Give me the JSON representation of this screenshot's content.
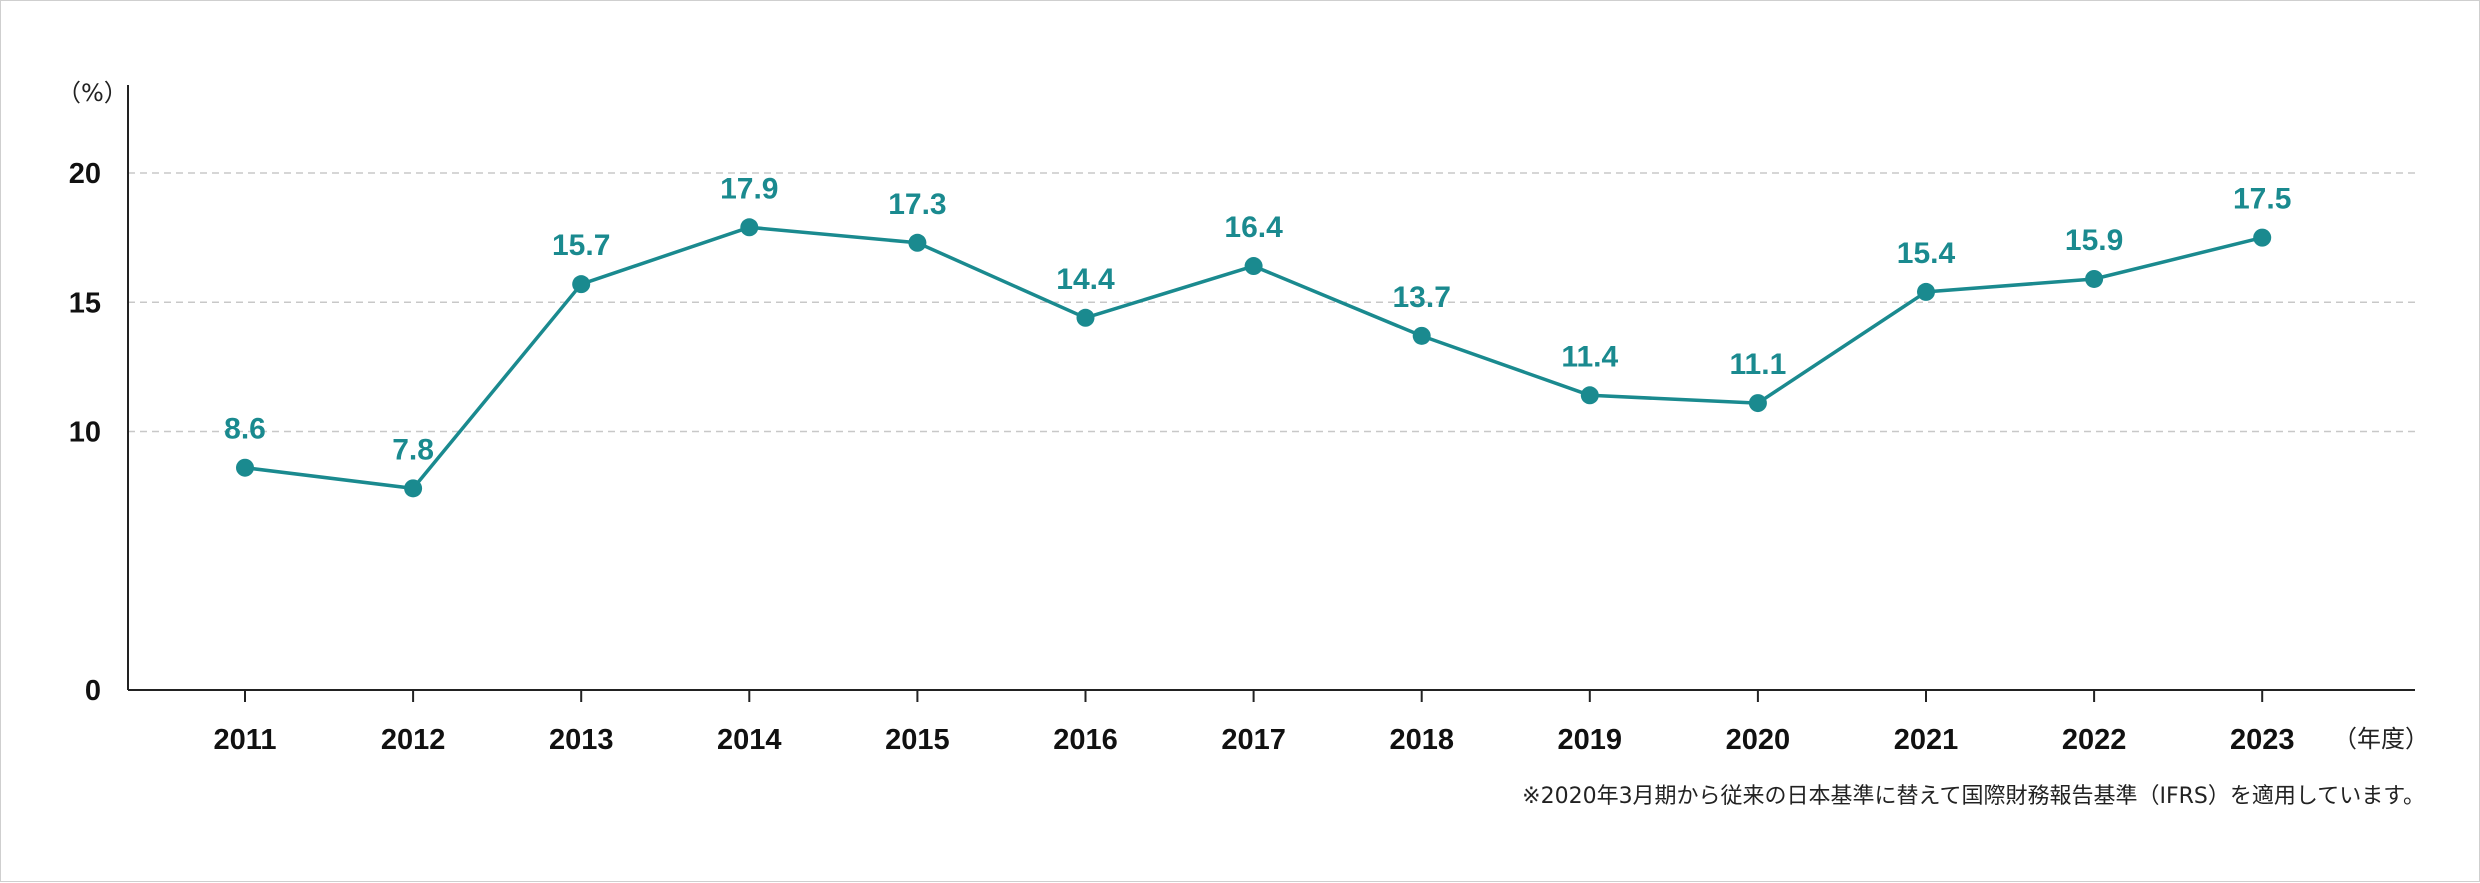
{
  "chart_data": {
    "type": "line",
    "y_unit_label": "（%）",
    "x_unit_label": "（年度）",
    "note": "※2020年3月期から従来の日本基準に替えて国際財務報告基準（IFRS）を適用しています。",
    "ylim": [
      0,
      20
    ],
    "y_ticks": [
      0,
      10,
      15,
      20
    ],
    "grid": true,
    "categories": [
      "2011",
      "2012",
      "2013",
      "2014",
      "2015",
      "2016",
      "2017",
      "2018",
      "2019",
      "2020",
      "2021",
      "2022",
      "2023"
    ],
    "series": [
      {
        "values": [
          8.6,
          7.8,
          15.7,
          17.9,
          17.3,
          14.4,
          16.4,
          13.7,
          11.4,
          11.1,
          15.4,
          15.9,
          17.5
        ],
        "labels": [
          "8.6",
          "7.8",
          "15.7",
          "17.9",
          "17.3",
          "14.4",
          "16.4",
          "13.7",
          "11.4",
          "11.1",
          "15.4",
          "15.9",
          "17.5"
        ]
      }
    ],
    "colors": {
      "line": "#1a8a8f",
      "label": "#1a8a8f",
      "axis": "#222222",
      "grid": "#c8c8c8"
    }
  }
}
